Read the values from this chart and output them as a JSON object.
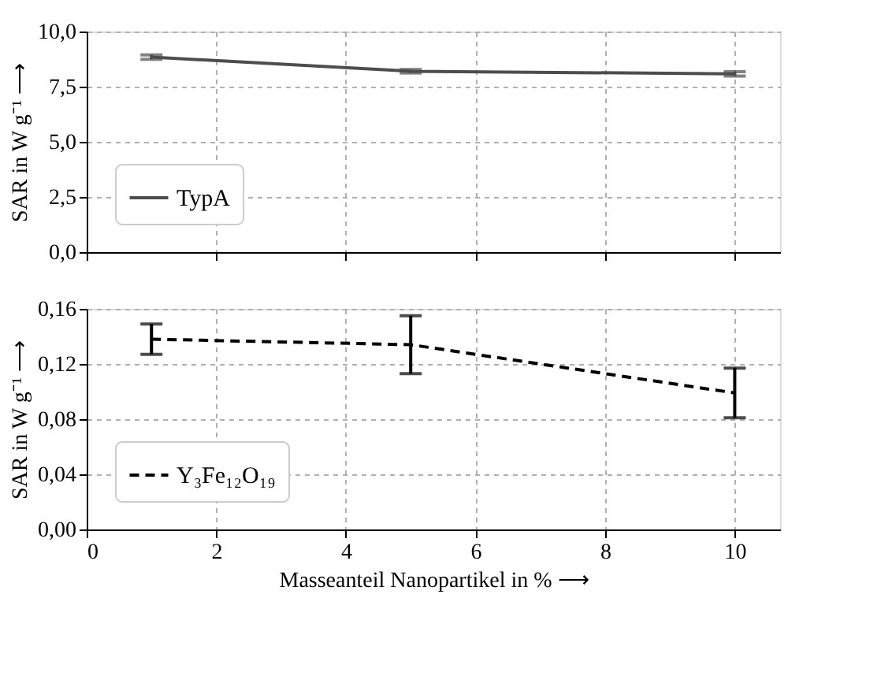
{
  "chart_data": [
    {
      "type": "line",
      "ylabel": "SAR in W g⁻¹ ⟶",
      "x": [
        1,
        5,
        10
      ],
      "series": [
        {
          "name": "TypA",
          "color": "#4d4d4d",
          "line_style": "solid",
          "values": [
            8.84,
            8.2,
            8.08
          ],
          "errors": [
            0.1,
            0.08,
            0.1
          ]
        }
      ],
      "xlim": [
        0,
        10.7
      ],
      "xticks": [
        0,
        2,
        4,
        6,
        8,
        10
      ],
      "ylim": [
        0,
        10
      ],
      "yticks": [
        {
          "value": 0,
          "label": "0,0"
        },
        {
          "value": 2.5,
          "label": "2,5"
        },
        {
          "value": 5,
          "label": "5,0"
        },
        {
          "value": 7.5,
          "label": "7,5"
        },
        {
          "value": 10,
          "label": "10,0"
        }
      ],
      "tick_labels": "y",
      "grid": true,
      "legend": "bottom left",
      "marker": "none"
    },
    {
      "type": "line",
      "ylabel": "SAR in W g⁻¹ ⟶",
      "xlabel": "Masseanteil Nanopartikel in % ⟶",
      "x": [
        1,
        5,
        10
      ],
      "series": [
        {
          "name": "Y₃Fe₁₂O₁₉",
          "color": "#000000",
          "line_style": "dashed",
          "values": [
            0.138,
            0.134,
            0.099
          ],
          "errors": [
            0.011,
            0.021,
            0.018
          ]
        }
      ],
      "xlim": [
        0,
        10.7
      ],
      "xticks": [
        0,
        2,
        4,
        6,
        8,
        10
      ],
      "ylim": [
        0,
        0.16
      ],
      "yticks": [
        {
          "value": 0,
          "label": "0,00"
        },
        {
          "value": 0.04,
          "label": "0,04"
        },
        {
          "value": 0.08,
          "label": "0,08"
        },
        {
          "value": 0.12,
          "label": "0,12"
        },
        {
          "value": 0.16,
          "label": "0,16"
        }
      ],
      "grid": true,
      "legend": "bottom left",
      "marker": "none"
    }
  ]
}
